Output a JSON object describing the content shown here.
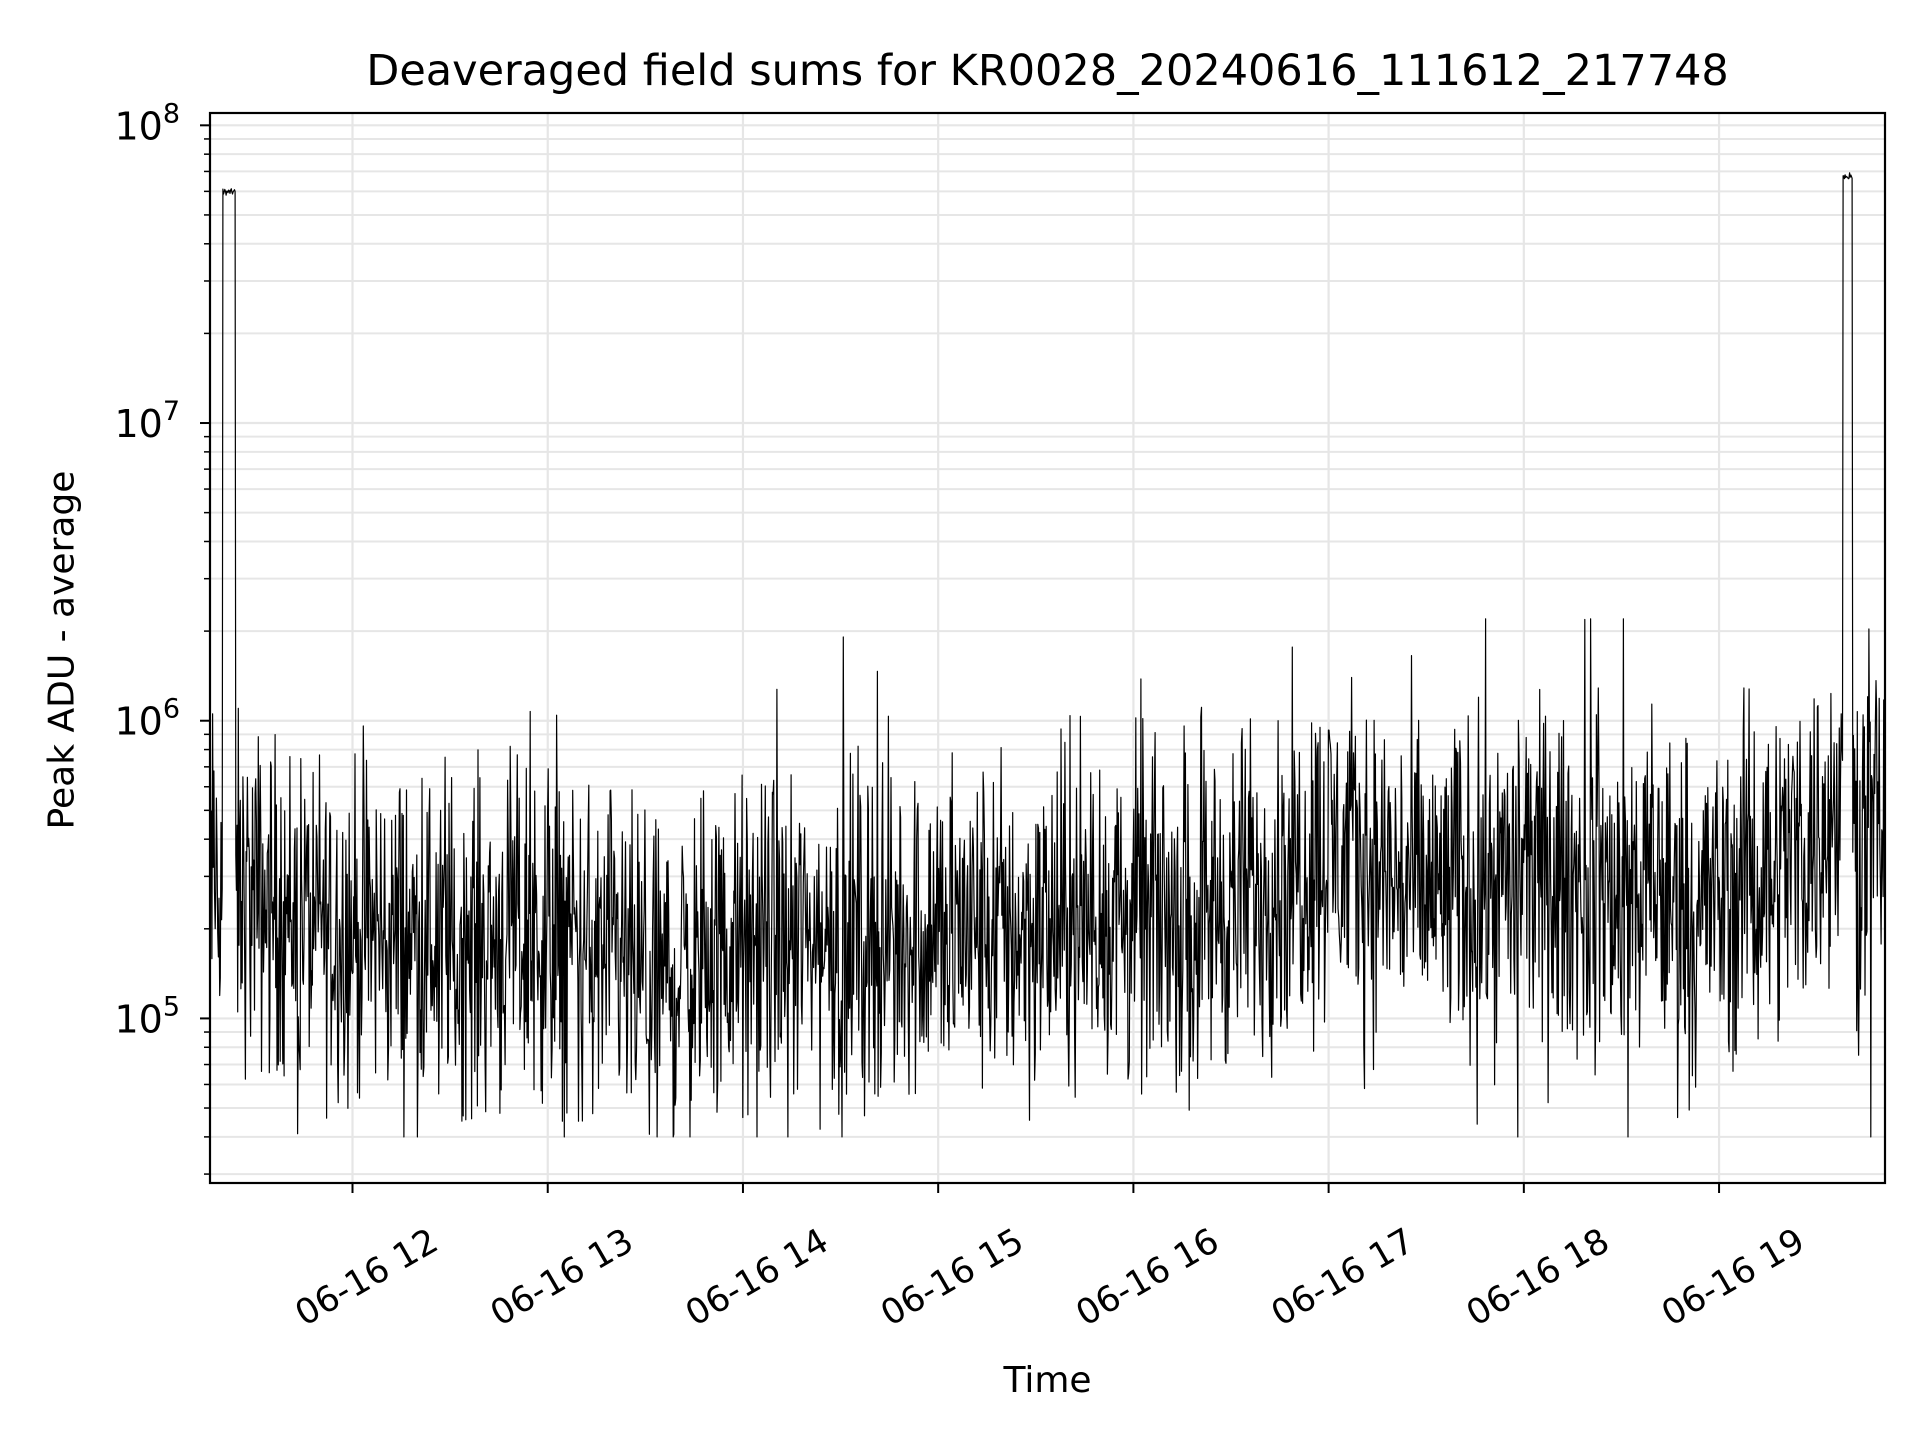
{
  "chart_data": {
    "type": "line",
    "title": "Deaveraged field sums for KR0028_20240616_111612_217748",
    "xlabel": "Time",
    "ylabel": "Peak ADU - average",
    "x_range": [
      "2024-06-16 11:16:12",
      "2024-06-16 19:51:00"
    ],
    "x_ticks": [
      "06-16 12",
      "06-16 13",
      "06-16 14",
      "06-16 15",
      "06-16 16",
      "06-16 17",
      "06-16 18",
      "06-16 19"
    ],
    "y_scale": "log",
    "ylim": [
      28000,
      110000000
    ],
    "y_ticks": [
      100000,
      1000000,
      10000000,
      100000000
    ],
    "y_tick_labels": [
      {
        "base": "10",
        "exp": "5"
      },
      {
        "base": "10",
        "exp": "6"
      },
      {
        "base": "10",
        "exp": "7"
      },
      {
        "base": "10",
        "exp": "8"
      }
    ],
    "grid": true,
    "line_color": "#000000",
    "grid_color": "#e6e6e6",
    "series": [
      {
        "x": [
          "11:16",
          "11:20",
          "11:21",
          "11:22",
          "11:23",
          "11:25",
          "11:28",
          "11:35",
          "11:45",
          "11:55",
          "12:05",
          "12:15",
          "12:30",
          "12:45",
          "13:00",
          "13:15",
          "13:30",
          "13:45",
          "14:00",
          "14:15",
          "14:30",
          "14:45",
          "15:00",
          "15:15",
          "15:30",
          "15:45",
          "16:00",
          "16:15",
          "16:30",
          "16:45",
          "17:00",
          "17:15",
          "17:30",
          "17:45",
          "18:00",
          "18:15",
          "18:30",
          "18:45",
          "19:00",
          "19:15",
          "19:30",
          "19:35",
          "19:37",
          "19:38",
          "19:39",
          "19:40",
          "19:42",
          "19:45",
          "19:51"
        ],
        "y": [
          300000,
          350000,
          58000000,
          60000000,
          60000000,
          300000,
          250000,
          220000,
          230000,
          200000,
          180000,
          170000,
          180000,
          170000,
          190000,
          150000,
          120000,
          160000,
          170000,
          180000,
          190000,
          180000,
          200000,
          190000,
          200000,
          210000,
          220000,
          230000,
          250000,
          260000,
          380000,
          270000,
          250000,
          260000,
          300000,
          320000,
          260000,
          250000,
          250000,
          300000,
          420000,
          450000,
          450000,
          68000000,
          68000000,
          68000000,
          420000,
          420000,
          460000
        ],
        "noise_median": {
          "x": [
            "11:16",
            "11:30",
            "12:00",
            "12:30",
            "13:00",
            "13:30",
            "14:00",
            "14:30",
            "15:00",
            "15:30",
            "16:00",
            "16:30",
            "17:00",
            "17:30",
            "18:00",
            "18:30",
            "19:00",
            "19:30",
            "19:51"
          ],
          "y": [
            300000,
            250000,
            200000,
            180000,
            190000,
            130000,
            170000,
            190000,
            200000,
            200000,
            220000,
            240000,
            380000,
            260000,
            300000,
            260000,
            250000,
            420000,
            450000
          ]
        }
      }
    ]
  }
}
